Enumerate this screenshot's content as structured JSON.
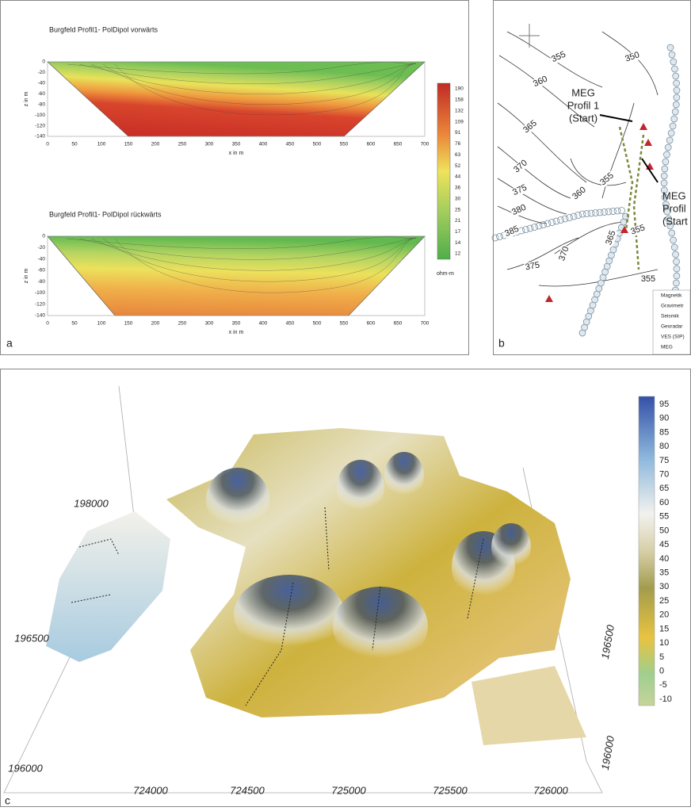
{
  "panel_a": {
    "label": "a",
    "plots": [
      {
        "title": "Burgfeld Profil1- PolDipol vorwärts",
        "y_label": "z in m",
        "x_label": "x in m",
        "yticks": [
          0,
          -20,
          -40,
          -60,
          -80,
          -100,
          -120,
          -140
        ],
        "xticks": [
          0,
          50,
          100,
          150,
          200,
          250,
          300,
          350,
          400,
          450,
          500,
          550,
          600,
          650,
          700
        ]
      },
      {
        "title": "Burgfeld Profil1- PolDipol rückwärts",
        "y_label": "z in m",
        "x_label": "x in m",
        "yticks": [
          0,
          -20,
          -40,
          -60,
          -80,
          -100,
          -120,
          -140
        ],
        "xticks": [
          0,
          50,
          100,
          150,
          200,
          250,
          300,
          350,
          400,
          450,
          500,
          550,
          600,
          650,
          700
        ]
      }
    ],
    "colorbar": {
      "ticks": [
        190,
        158,
        132,
        109,
        91,
        76,
        63,
        52,
        44,
        36,
        30,
        25,
        21,
        17,
        14,
        12
      ],
      "unit": "ohm-m"
    }
  },
  "panel_b": {
    "label": "b",
    "contour_labels": [
      350,
      355,
      360,
      365,
      370,
      375,
      380,
      385,
      360,
      355,
      365,
      355,
      355,
      370,
      375
    ],
    "annotations": [
      [
        "MEG",
        "Profil 1",
        "(Start)"
      ],
      [
        "MEG",
        "Profil",
        "(Start"
      ]
    ],
    "legend": [
      "Magnetik",
      "Gravimetr",
      "Seismik",
      "Georadar",
      "VES (SIP)",
      "MEG"
    ]
  },
  "panel_c": {
    "label": "c",
    "colorbar_ticks": [
      95,
      90,
      85,
      80,
      75,
      70,
      65,
      60,
      55,
      50,
      45,
      40,
      35,
      30,
      25,
      20,
      15,
      10,
      5,
      0,
      -5,
      -10
    ],
    "x_ticks": [
      724000,
      724500,
      725000,
      725500,
      726000
    ],
    "y_ticks_left": [
      198000,
      196500,
      196000
    ],
    "y_ticks_right": [
      196500,
      196000
    ]
  }
}
